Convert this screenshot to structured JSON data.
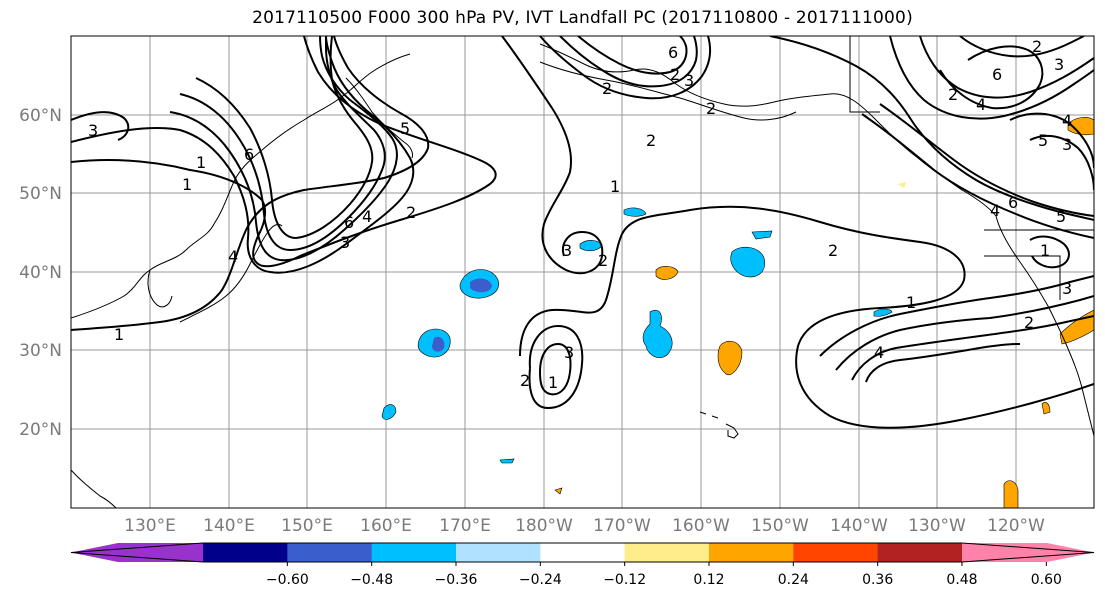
{
  "title": "2017110500 F000 300 hPa PV, IVT Landfall PC (2017110800 - 2017111000)",
  "map": {
    "lon_labels": [
      "130°E",
      "140°E",
      "150°E",
      "160°E",
      "170°E",
      "180°W",
      "170°W",
      "160°W",
      "150°W",
      "140°W",
      "130°W",
      "120°W"
    ],
    "lat_labels": [
      "60°N",
      "50°N",
      "40°N",
      "30°N",
      "20°N"
    ],
    "contour_labels": [
      "3",
      "1",
      "1",
      "6",
      "4",
      "3",
      "2",
      "1",
      "4",
      "6",
      "5",
      "6",
      "3",
      "2",
      "2",
      "1",
      "3",
      "3",
      "2",
      "2",
      "1",
      "4",
      "3",
      "2",
      "2",
      "4",
      "2",
      "6",
      "5",
      "4",
      "5",
      "3",
      "4",
      "1",
      "2",
      "3",
      "1",
      "6",
      "2",
      "2"
    ],
    "fill_colors": {
      "neg_024": "#00bfff",
      "neg_012": "#b0e2ff",
      "neg_048": "#3a5fcd",
      "pos_012": "#ffec8b",
      "pos_024": "#ffa500"
    }
  },
  "colorbar": {
    "ticks": [
      "−0.60",
      "−0.48",
      "−0.36",
      "−0.24",
      "−0.12",
      "0.12",
      "0.24",
      "0.36",
      "0.48",
      "0.60"
    ],
    "colors": [
      "#9932cc",
      "#00008b",
      "#3a5fcd",
      "#00bfff",
      "#b0e2ff",
      "#ffffff",
      "#ffec8b",
      "#ffa500",
      "#ff4500",
      "#b22222",
      "#ff82ab"
    ]
  }
}
